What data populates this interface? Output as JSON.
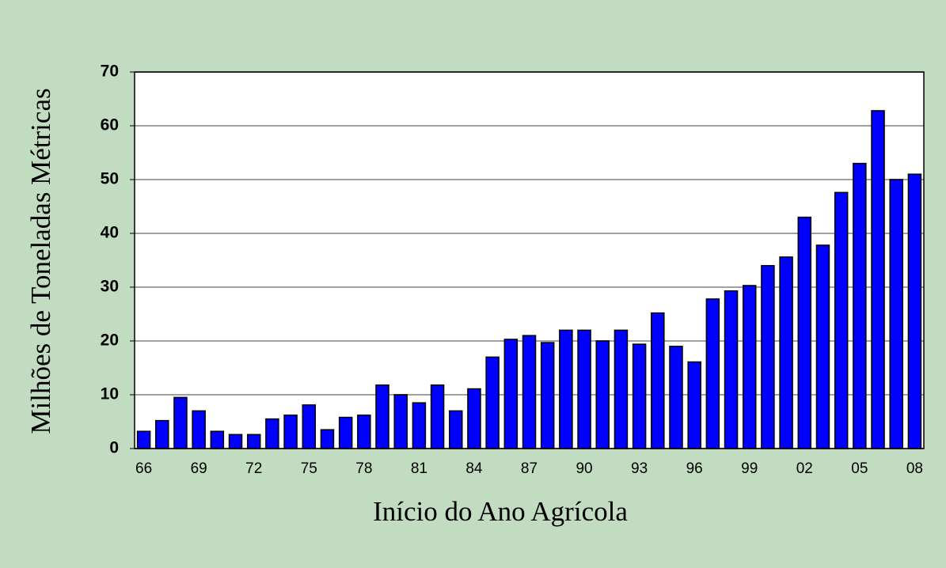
{
  "chart_data": {
    "type": "bar",
    "x_label": "Início do Ano Agrícola",
    "y_label": "Milhões de Toneladas Métricas",
    "categories": [
      "66",
      null,
      null,
      "69",
      null,
      null,
      "72",
      null,
      null,
      "75",
      null,
      null,
      "78",
      null,
      null,
      "81",
      null,
      null,
      "84",
      null,
      null,
      "87",
      null,
      null,
      "90",
      null,
      null,
      "93",
      null,
      null,
      "96",
      null,
      null,
      "99",
      null,
      null,
      "02",
      null,
      null,
      "05",
      null,
      null,
      "08"
    ],
    "values": [
      3.2,
      5.2,
      9.5,
      7,
      3.2,
      2.6,
      2.6,
      5.5,
      6.2,
      8.1,
      3.5,
      5.8,
      6.2,
      11.8,
      10,
      8.5,
      11.8,
      7,
      11.1,
      17,
      20.3,
      21,
      19.7,
      22,
      22,
      20,
      22,
      19.4,
      25.2,
      19,
      16.1,
      27.8,
      29.3,
      30.3,
      34,
      35.6,
      43,
      37.8,
      47.6,
      53,
      62.8,
      50,
      51
    ],
    "color": "#0000ff",
    "ylim": [
      0,
      70
    ],
    "yticks": [
      0,
      10,
      20,
      30,
      40,
      50,
      60,
      70
    ],
    "grid": true
  }
}
